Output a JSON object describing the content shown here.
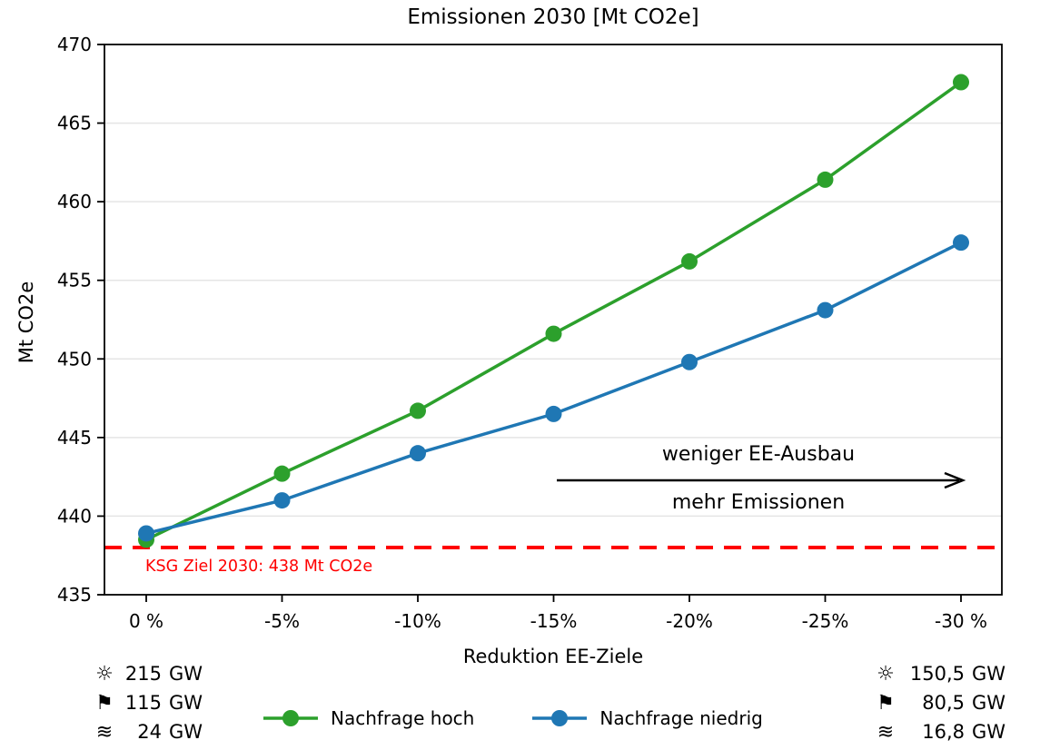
{
  "chart_data": {
    "type": "line",
    "title": "Emissionen 2030 [Mt CO2e]",
    "xlabel": "Reduktion EE-Ziele",
    "ylabel": "Mt CO2e",
    "categories": [
      "0 %",
      "-5%",
      "-10%",
      "-15%",
      "-20%",
      "-25%",
      "-30 %"
    ],
    "ylim": [
      435,
      470
    ],
    "yticks": [
      435,
      440,
      445,
      450,
      455,
      460,
      465,
      470
    ],
    "grid": true,
    "legend_position": "bottom",
    "series": [
      {
        "name": "Nachfrage hoch",
        "color": "#2ca02c",
        "values": [
          438.5,
          442.7,
          446.7,
          451.6,
          456.2,
          461.4,
          467.6
        ]
      },
      {
        "name": "Nachfrage niedrig",
        "color": "#1f77b4",
        "values": [
          438.9,
          441.0,
          444.0,
          446.5,
          449.8,
          453.1,
          457.4
        ]
      }
    ],
    "reference_line": {
      "value": 438,
      "label": "KSG Ziel 2030: 438 Mt CO2e",
      "color": "#ff0000",
      "style": "dashed"
    },
    "annotation": {
      "line1": "weniger EE-Ausbau",
      "line2": "mehr Emissionen",
      "arrow_direction": "right",
      "color": "#000000"
    }
  },
  "footer": {
    "left_capacities": [
      {
        "icon": "sun-icon",
        "value": "215",
        "unit": "GW"
      },
      {
        "icon": "flag-icon",
        "value": "115",
        "unit": "GW"
      },
      {
        "icon": "waves-icon",
        "value": "24",
        "unit": "GW"
      }
    ],
    "right_capacities": [
      {
        "icon": "sun-icon",
        "value": "150,5",
        "unit": "GW"
      },
      {
        "icon": "flag-icon",
        "value": "80,5",
        "unit": "GW"
      },
      {
        "icon": "waves-icon",
        "value": "16,8",
        "unit": "GW"
      }
    ],
    "legend": [
      {
        "label": "Nachfrage hoch",
        "color": "#2ca02c"
      },
      {
        "label": "Nachfrage niedrig",
        "color": "#1f77b4"
      }
    ]
  },
  "colors": {
    "grid": "#e5e5e5",
    "spine": "#000000",
    "background": "#ffffff"
  }
}
